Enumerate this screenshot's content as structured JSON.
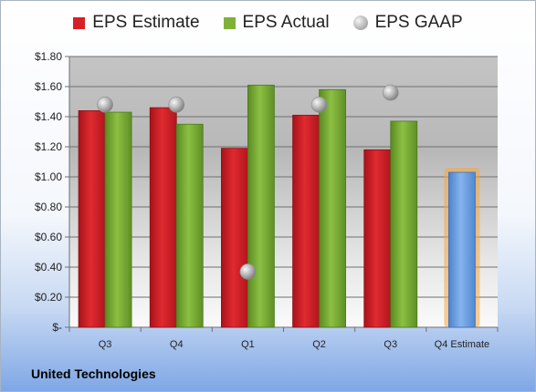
{
  "legend": {
    "estimate": "EPS Estimate",
    "actual": "EPS Actual",
    "gaap": "EPS GAAP"
  },
  "company": "United Technologies",
  "colors": {
    "estimate": "#d62027",
    "actual": "#7fb13a",
    "gaap": "#bdbdbd",
    "forecast": "#6a9fe0",
    "forecast_glow": "#f5a640"
  },
  "chart_data": {
    "type": "bar",
    "categories": [
      "Q3",
      "Q4",
      "Q1",
      "Q2",
      "Q3",
      "Q4 Estimate"
    ],
    "series": [
      {
        "name": "EPS Estimate",
        "values": [
          1.44,
          1.46,
          1.19,
          1.41,
          1.18,
          1.03
        ]
      },
      {
        "name": "EPS Actual",
        "values": [
          1.43,
          1.35,
          1.61,
          1.58,
          1.37,
          null
        ]
      },
      {
        "name": "EPS GAAP",
        "values": [
          1.48,
          1.48,
          0.37,
          1.48,
          1.56,
          null
        ]
      }
    ],
    "ylim": [
      0,
      1.8
    ],
    "yticks": [
      "$-",
      "$0.20",
      "$0.40",
      "$0.60",
      "$0.80",
      "$1.00",
      "$1.20",
      "$1.40",
      "$1.60",
      "$1.80"
    ],
    "grid": true,
    "legend_position": "top"
  }
}
